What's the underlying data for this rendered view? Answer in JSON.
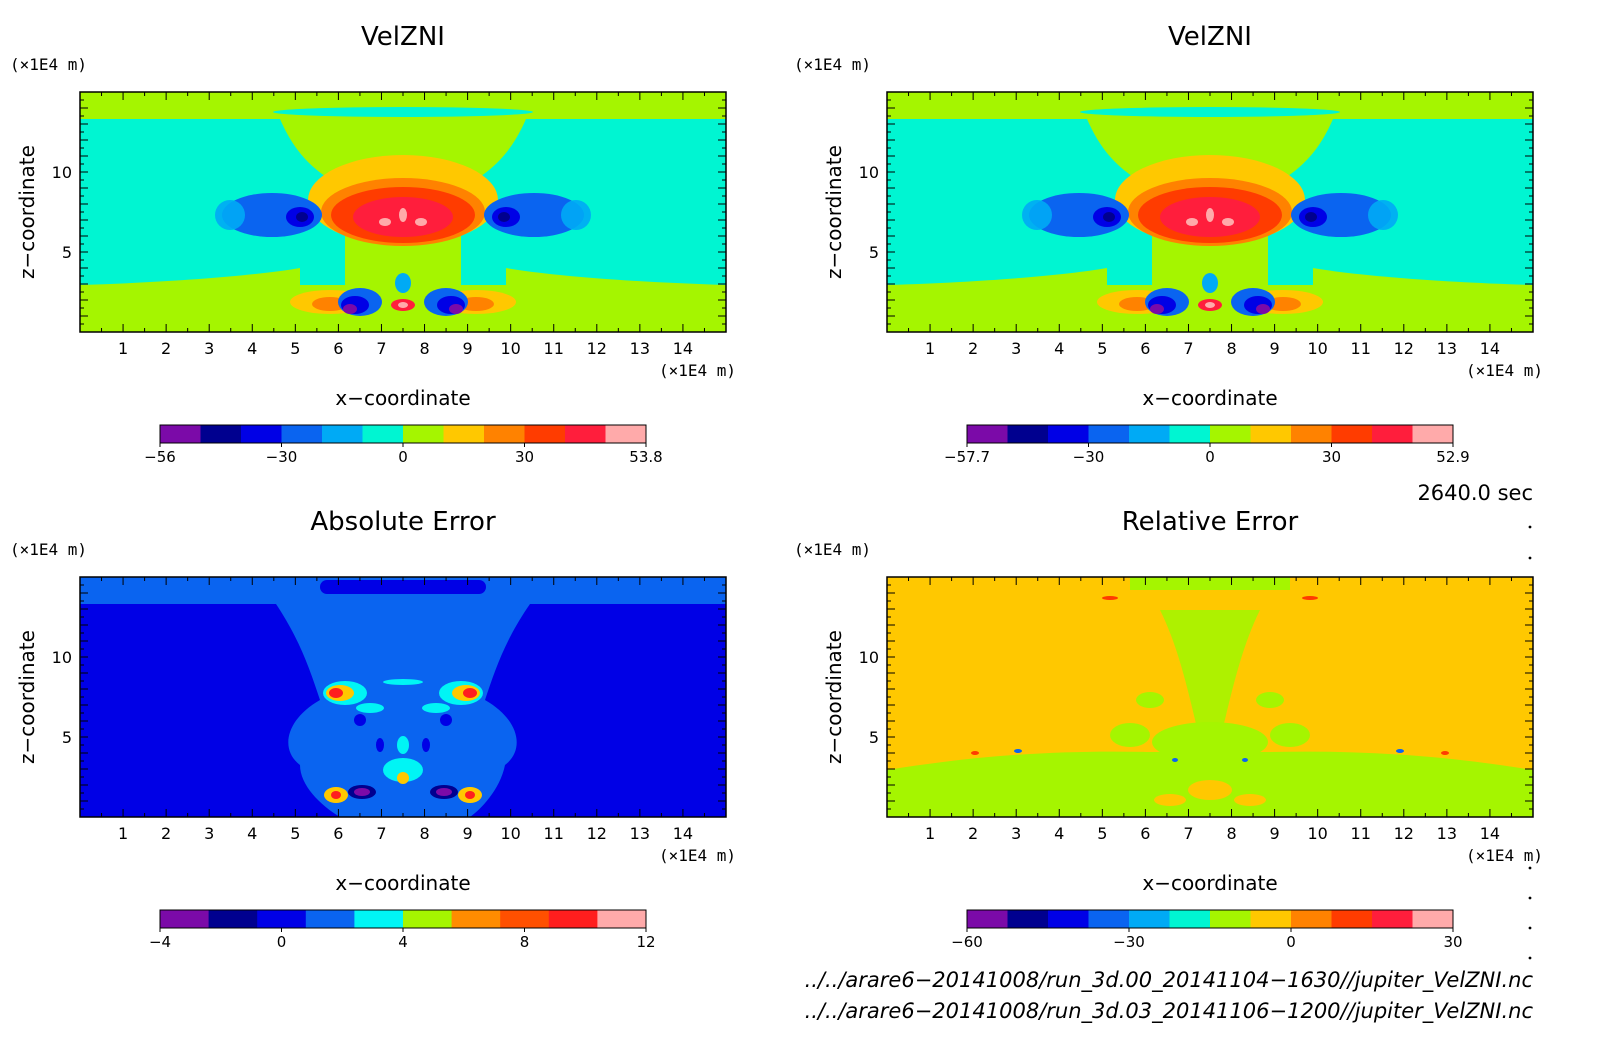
{
  "panels": [
    {
      "title": "VelZNI",
      "xlabel": "x−coordinate",
      "ylabel": "z−coordinate",
      "x_unit": "(×1E4 m)",
      "y_unit": "(×1E4 m)",
      "x_ticks": [
        "1",
        "2",
        "3",
        "4",
        "5",
        "6",
        "7",
        "8",
        "9",
        "10",
        "11",
        "12",
        "13",
        "14"
      ],
      "y_ticks": [
        "5",
        "10"
      ],
      "colorbar": {
        "colors": [
          "#7b0aa8",
          "#00008f",
          "#0000e6",
          "#0a64f0",
          "#00aaf5",
          "#00f5d2",
          "#a5f500",
          "#ffc800",
          "#ff8200",
          "#ff3c00",
          "#ff1e3c",
          "#ffaaaa"
        ],
        "labels": [
          "−56",
          "−30",
          "0",
          "30",
          "53.8"
        ]
      }
    },
    {
      "title": "VelZNI",
      "xlabel": "x−coordinate",
      "ylabel": "z−coordinate",
      "x_unit": "(×1E4 m)",
      "y_unit": "(×1E4 m)",
      "x_ticks": [
        "1",
        "2",
        "3",
        "4",
        "5",
        "6",
        "7",
        "8",
        "9",
        "10",
        "11",
        "12",
        "13",
        "14"
      ],
      "y_ticks": [
        "5",
        "10"
      ],
      "colorbar": {
        "colors": [
          "#7b0aa8",
          "#00008f",
          "#0000e6",
          "#0a64f0",
          "#00aaf5",
          "#00f5d2",
          "#a5f500",
          "#ffc800",
          "#ff8200",
          "#ff3c00",
          "#ff1e3c",
          "#ffaaaa"
        ],
        "labels": [
          "−57.7",
          "−30",
          "0",
          "30",
          "52.9"
        ]
      }
    },
    {
      "title": "Absolute Error",
      "xlabel": "x−coordinate",
      "ylabel": "z−coordinate",
      "x_unit": "(×1E4 m)",
      "y_unit": "(×1E4 m)",
      "x_ticks": [
        "1",
        "2",
        "3",
        "4",
        "5",
        "6",
        "7",
        "8",
        "9",
        "10",
        "11",
        "12",
        "13",
        "14"
      ],
      "y_ticks": [
        "5",
        "10"
      ],
      "colorbar": {
        "colors": [
          "#7b0aa8",
          "#00008f",
          "#0000e6",
          "#0a64f0",
          "#00f5f5",
          "#a5f500",
          "#ff8c00",
          "#ff5000",
          "#ff1e1e",
          "#ffaaaa"
        ],
        "labels": [
          "−4",
          "0",
          "4",
          "8",
          "12"
        ]
      }
    },
    {
      "title": "Relative Error",
      "xlabel": "x−coordinate",
      "ylabel": "z−coordinate",
      "x_unit": "(×1E4 m)",
      "y_unit": "(×1E4 m)",
      "x_ticks": [
        "1",
        "2",
        "3",
        "4",
        "5",
        "6",
        "7",
        "8",
        "9",
        "10",
        "11",
        "12",
        "13",
        "14"
      ],
      "y_ticks": [
        "5",
        "10"
      ],
      "colorbar": {
        "colors": [
          "#7b0aa8",
          "#00008f",
          "#0000e6",
          "#0a64f0",
          "#00aaf5",
          "#00f5d2",
          "#a5f500",
          "#ffc800",
          "#ff8200",
          "#ff3c00",
          "#ff1e3c",
          "#ffaaaa"
        ],
        "labels": [
          "−60",
          "−30",
          "0",
          "30"
        ]
      }
    }
  ],
  "time_label": "2640.0 sec",
  "file_paths": [
    "../../arare6−20141008/run_3d.00_20141104−1630//jupiter_VelZNI.nc",
    "../../arare6−20141008/run_3d.03_20141106−1200//jupiter_VelZNI.nc"
  ],
  "chart_data": [
    {
      "type": "heatmap",
      "title": "VelZNI",
      "xlabel": "x−coordinate",
      "ylabel": "z−coordinate",
      "x_unit": "(×1E4 m)",
      "y_unit": "(×1E4 m)",
      "xlim": [
        0,
        15
      ],
      "ylim": [
        0,
        15
      ],
      "colorbar_labels": [
        -56,
        -30,
        0,
        30,
        53.8
      ]
    },
    {
      "type": "heatmap",
      "title": "VelZNI",
      "xlabel": "x−coordinate",
      "ylabel": "z−coordinate",
      "x_unit": "(×1E4 m)",
      "y_unit": "(×1E4 m)",
      "xlim": [
        0,
        15
      ],
      "ylim": [
        0,
        15
      ],
      "colorbar_labels": [
        -57.7,
        -30,
        0,
        30,
        52.9
      ]
    },
    {
      "type": "heatmap",
      "title": "Absolute Error",
      "xlabel": "x−coordinate",
      "ylabel": "z−coordinate",
      "x_unit": "(×1E4 m)",
      "y_unit": "(×1E4 m)",
      "xlim": [
        0,
        15
      ],
      "ylim": [
        0,
        15
      ],
      "colorbar_labels": [
        -4,
        0,
        4,
        8,
        12
      ]
    },
    {
      "type": "heatmap",
      "title": "Relative Error",
      "xlabel": "x−coordinate",
      "ylabel": "z−coordinate",
      "x_unit": "(×1E4 m)",
      "y_unit": "(×1E4 m)",
      "xlim": [
        0,
        15
      ],
      "ylim": [
        0,
        15
      ],
      "colorbar_labels": [
        -60,
        -30,
        0,
        30
      ]
    }
  ]
}
